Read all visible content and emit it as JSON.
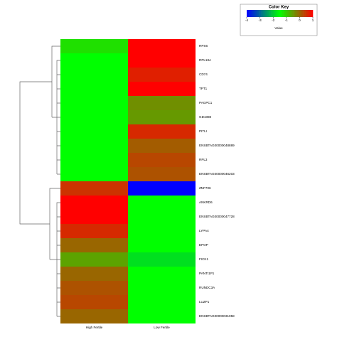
{
  "chart_data": {
    "type": "heatmap",
    "columns": [
      "High Fertile",
      "Low Fertile"
    ],
    "rows": [
      "RPS6",
      "RPL18A",
      "CD74",
      "TPT1",
      "PAGPC1",
      "GD1088",
      "PITLI",
      "ENSBTAG00000048889",
      "RPL3",
      "ENSBTAG00000046203",
      "ZNF706",
      "ANKRD6",
      "ENSBTAG00000047728",
      "LYPA4",
      "EPOP",
      "FICK1",
      "PANTI1P1",
      "RUNDC3A",
      "LUZP1",
      "ENSBTAG00000031058"
    ],
    "values": [
      [
        -1.2,
        1
      ],
      [
        -1.5,
        1
      ],
      [
        -1.5,
        0.7
      ],
      [
        -1.5,
        1
      ],
      [
        -1.5,
        -0.4
      ],
      [
        -1.5,
        -0.5
      ],
      [
        -1.5,
        0.6
      ],
      [
        -1.5,
        0.1
      ],
      [
        -1.5,
        0.3
      ],
      [
        -1.5,
        0.2
      ],
      [
        0.5,
        -4
      ],
      [
        1,
        -1.5
      ],
      [
        1,
        -1.5
      ],
      [
        0.6,
        -1.5
      ],
      [
        0,
        -1.5
      ],
      [
        -0.6,
        -1.8
      ],
      [
        0,
        -1.5
      ],
      [
        0.2,
        -1.5
      ],
      [
        0.3,
        -1.5
      ],
      [
        0,
        -1.5
      ]
    ],
    "colormap": {
      "values": [
        -4,
        -1.5,
        1
      ],
      "colors": [
        "#0000ff",
        "#00ff00",
        "#ff0000"
      ]
    },
    "legend": {
      "title": "Color Key",
      "xlabel": "Value",
      "xlim": [
        -4,
        1
      ],
      "xticks": [
        -4,
        -3,
        -2,
        -1,
        0,
        1
      ]
    }
  }
}
